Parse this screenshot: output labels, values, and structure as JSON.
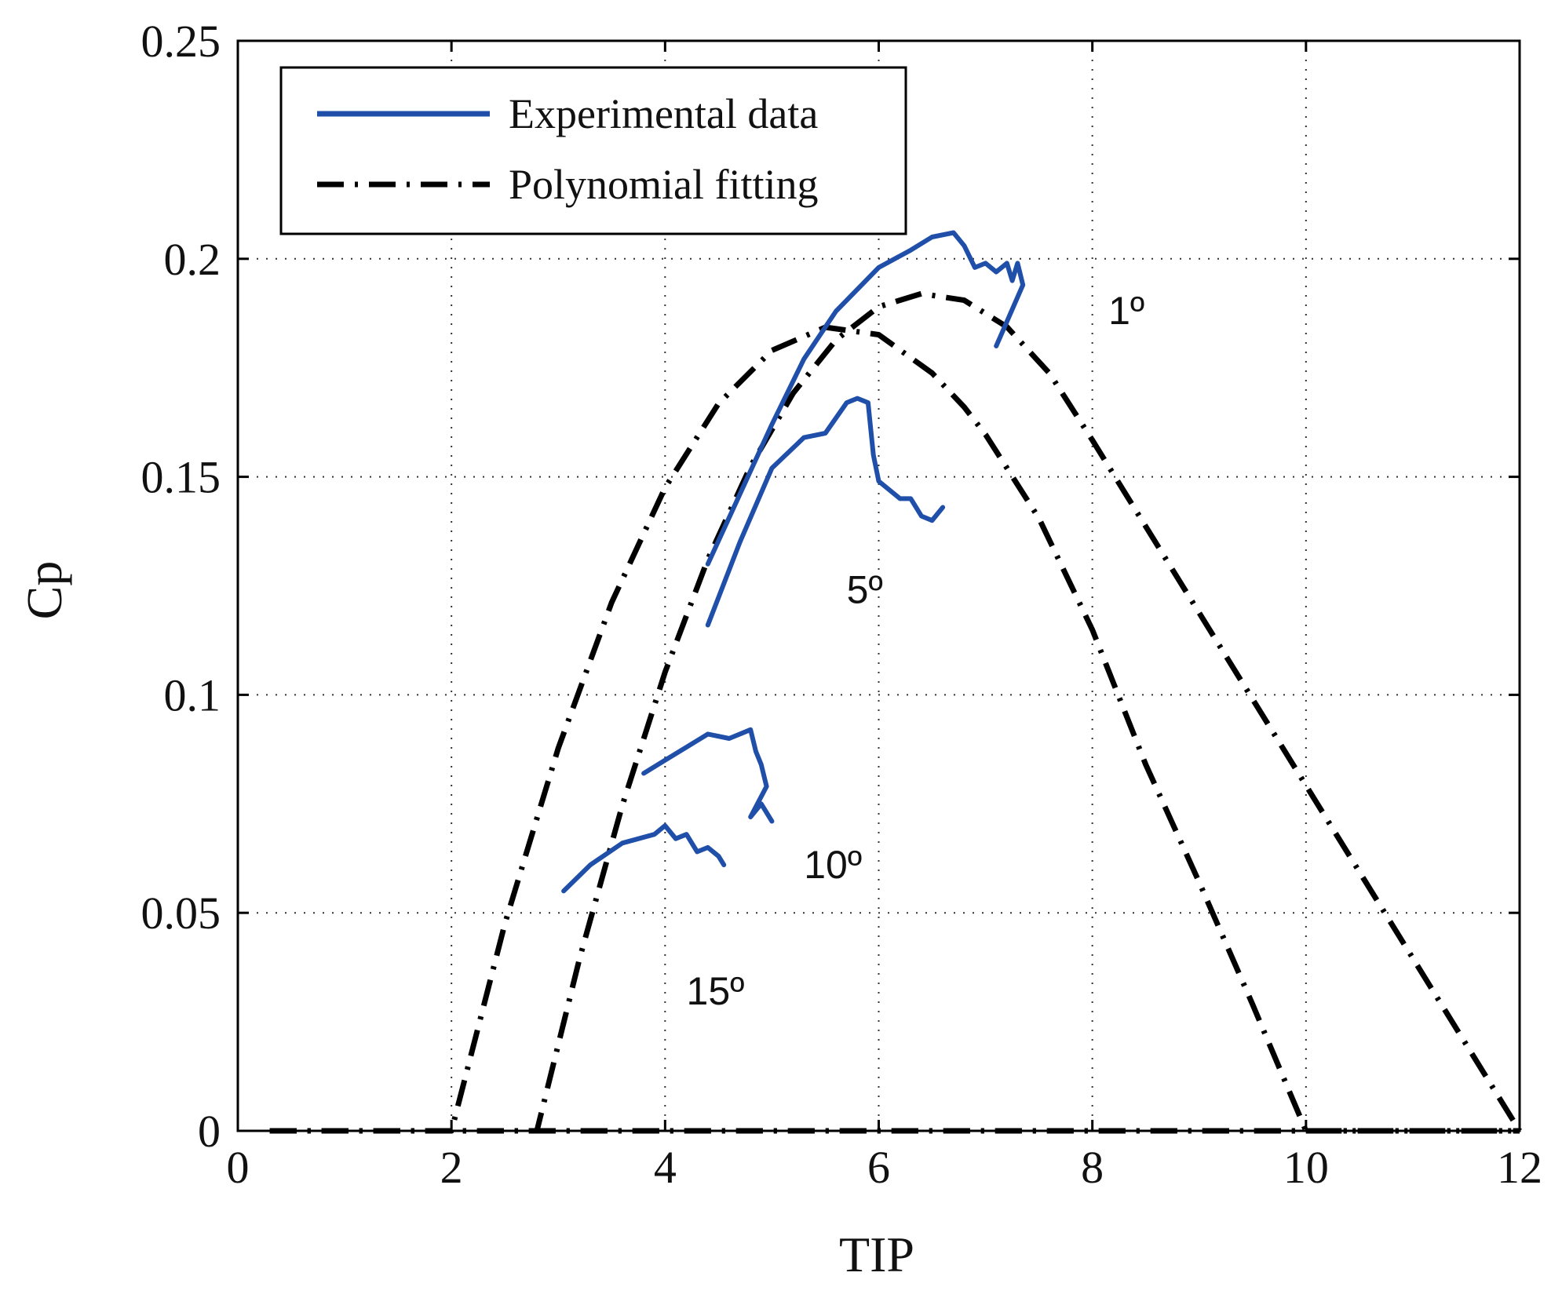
{
  "chart_data": {
    "type": "line",
    "title": "",
    "xlabel": "TIP",
    "ylabel": "Cp",
    "xlim": [
      0,
      12
    ],
    "ylim": [
      0,
      0.25
    ],
    "xticks": [
      0,
      2,
      4,
      6,
      8,
      10,
      12
    ],
    "xtick_labels": [
      "0",
      "2",
      "4",
      "6",
      "8",
      "10",
      "12"
    ],
    "yticks": [
      0,
      0.05,
      0.1,
      0.15,
      0.2,
      0.25
    ],
    "ytick_labels": [
      "0",
      "0.05",
      "0.1",
      "0.15",
      "0.2",
      "0.25"
    ],
    "grid": true,
    "legend": {
      "placement": "top-left",
      "entries": [
        {
          "label": "Experimental data",
          "style": "solid",
          "color": "#1f4fa8"
        },
        {
          "label": "Polynomial fitting",
          "style": "dash-dot",
          "color": "#000000"
        }
      ]
    },
    "series": [
      {
        "name": "Polynomial fitting 1°",
        "label": "1º",
        "label_at": [
          8.15,
          0.185
        ],
        "kind": "fit",
        "x": [
          0.3,
          2.0,
          2.5,
          3.0,
          3.5,
          4.0,
          4.5,
          5.0,
          5.5,
          6.0,
          6.5,
          6.8,
          7.0,
          7.5,
          8.0,
          8.5,
          9.0,
          9.5,
          10.0,
          12.0
        ],
        "y": [
          0.0,
          0.0,
          0.0475,
          0.0878,
          0.1212,
          0.1475,
          0.1668,
          0.179,
          0.1843,
          0.1826,
          0.1738,
          0.166,
          0.1597,
          0.1405,
          0.1149,
          0.084,
          0.057,
          0.029,
          0.0,
          0.0
        ]
      },
      {
        "name": "Polynomial fitting 5°",
        "label": "5º",
        "label_at": [
          5.7,
          0.121
        ],
        "kind": "fit",
        "x": [
          0.3,
          2.8,
          3.2,
          3.6,
          4.0,
          4.4,
          4.8,
          5.2,
          5.6,
          6.0,
          6.4,
          6.8,
          7.2,
          7.6,
          8.0,
          12.0
        ],
        "y": [
          0.0,
          0.0,
          0.0396,
          0.0747,
          0.1052,
          0.1311,
          0.1524,
          0.1692,
          0.1814,
          0.189,
          0.192,
          0.1905,
          0.1844,
          0.1737,
          0.1584,
          0.0
        ]
      },
      {
        "name": "Polynomial fitting 10°",
        "label": "10º",
        "label_at": [
          5.3,
          0.058
        ],
        "kind": "fit",
        "x": [
          0.3,
          2.0,
          2.5,
          3.0,
          3.5,
          4.0,
          4.5,
          5.0,
          5.5,
          5.8,
          12.0
        ],
        "y": [
          0.0,
          0.0,
          0.0,
          0.0,
          0.0,
          0.0,
          0.0,
          0.0,
          0.0,
          0.0,
          0.0
        ]
      },
      {
        "name": "Polynomial fitting 15°",
        "label": "15º",
        "label_at": [
          4.2,
          0.029
        ],
        "kind": "fit",
        "x": [
          0.3,
          2.0,
          2.5,
          3.0,
          3.5,
          4.0,
          4.5,
          5.0,
          5.5,
          5.8,
          12.0
        ],
        "y": [
          0.0,
          0.0,
          0.0,
          0.0,
          0.0,
          0.0,
          0.0,
          0.0,
          0.0,
          0.0,
          0.0
        ]
      },
      {
        "name": "Experimental data 1°",
        "kind": "exp",
        "x": [
          4.4,
          4.7,
          5.0,
          5.3,
          5.6,
          6.0,
          6.3,
          6.5,
          6.7,
          6.8,
          6.9,
          7.0,
          7.1,
          7.2,
          7.25,
          7.3,
          7.35,
          7.1
        ],
        "y": [
          0.13,
          0.146,
          0.162,
          0.177,
          0.188,
          0.198,
          0.202,
          0.205,
          0.206,
          0.203,
          0.198,
          0.199,
          0.197,
          0.199,
          0.195,
          0.199,
          0.194,
          0.18
        ]
      },
      {
        "name": "Experimental data 5°",
        "kind": "exp",
        "x": [
          4.4,
          4.7,
          5.0,
          5.3,
          5.5,
          5.7,
          5.8,
          5.9,
          5.95,
          6.0,
          6.1,
          6.2,
          6.3,
          6.4,
          6.5,
          6.6
        ],
        "y": [
          0.116,
          0.135,
          0.152,
          0.159,
          0.16,
          0.167,
          0.168,
          0.167,
          0.155,
          0.149,
          0.147,
          0.145,
          0.145,
          0.141,
          0.14,
          0.143
        ]
      },
      {
        "name": "Experimental data 10°",
        "kind": "exp",
        "x": [
          3.8,
          4.0,
          4.2,
          4.4,
          4.6,
          4.8,
          4.85,
          4.9,
          4.95,
          4.8,
          4.9,
          5.0
        ],
        "y": [
          0.082,
          0.085,
          0.088,
          0.091,
          0.09,
          0.092,
          0.087,
          0.084,
          0.079,
          0.072,
          0.075,
          0.071
        ]
      },
      {
        "name": "Experimental data 15°",
        "kind": "exp",
        "x": [
          3.05,
          3.3,
          3.6,
          3.9,
          4.0,
          4.1,
          4.2,
          4.3,
          4.4,
          4.5,
          4.55
        ],
        "y": [
          0.055,
          0.061,
          0.066,
          0.068,
          0.07,
          0.067,
          0.068,
          0.064,
          0.065,
          0.063,
          0.061
        ]
      }
    ]
  }
}
